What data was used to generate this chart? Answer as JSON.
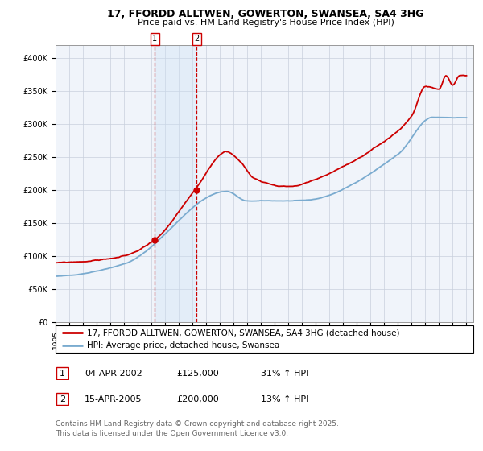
{
  "title": "17, FFORDD ALLTWEN, GOWERTON, SWANSEA, SA4 3HG",
  "subtitle": "Price paid vs. HM Land Registry's House Price Index (HPI)",
  "ylim": [
    0,
    420000
  ],
  "yticks": [
    0,
    50000,
    100000,
    150000,
    200000,
    250000,
    300000,
    350000,
    400000
  ],
  "ytick_labels": [
    "£0",
    "£50K",
    "£100K",
    "£150K",
    "£200K",
    "£250K",
    "£300K",
    "£350K",
    "£400K"
  ],
  "red_color": "#cc0000",
  "blue_color": "#7aabcf",
  "marker_color": "#cc0000",
  "vline_color": "#cc0000",
  "shade_color": "#cce0f5",
  "background_color": "#f0f4fa",
  "grid_color": "#c8d0dc",
  "sale1_year": 2002.25,
  "sale1_value": 125000,
  "sale2_year": 2005.29,
  "sale2_value": 200000,
  "legend_red": "17, FFORDD ALLTWEN, GOWERTON, SWANSEA, SA4 3HG (detached house)",
  "legend_blue": "HPI: Average price, detached house, Swansea",
  "table_row1": [
    "1",
    "04-APR-2002",
    "£125,000",
    "31% ↑ HPI"
  ],
  "table_row2": [
    "2",
    "15-APR-2005",
    "£200,000",
    "13% ↑ HPI"
  ],
  "footnote": "Contains HM Land Registry data © Crown copyright and database right 2025.\nThis data is licensed under the Open Government Licence v3.0.",
  "title_fontsize": 9,
  "subtitle_fontsize": 8,
  "tick_fontsize": 7,
  "legend_fontsize": 7.5,
  "table_fontsize": 8,
  "footnote_fontsize": 6.5,
  "xlim_left": 1995,
  "xlim_right": 2025.5
}
